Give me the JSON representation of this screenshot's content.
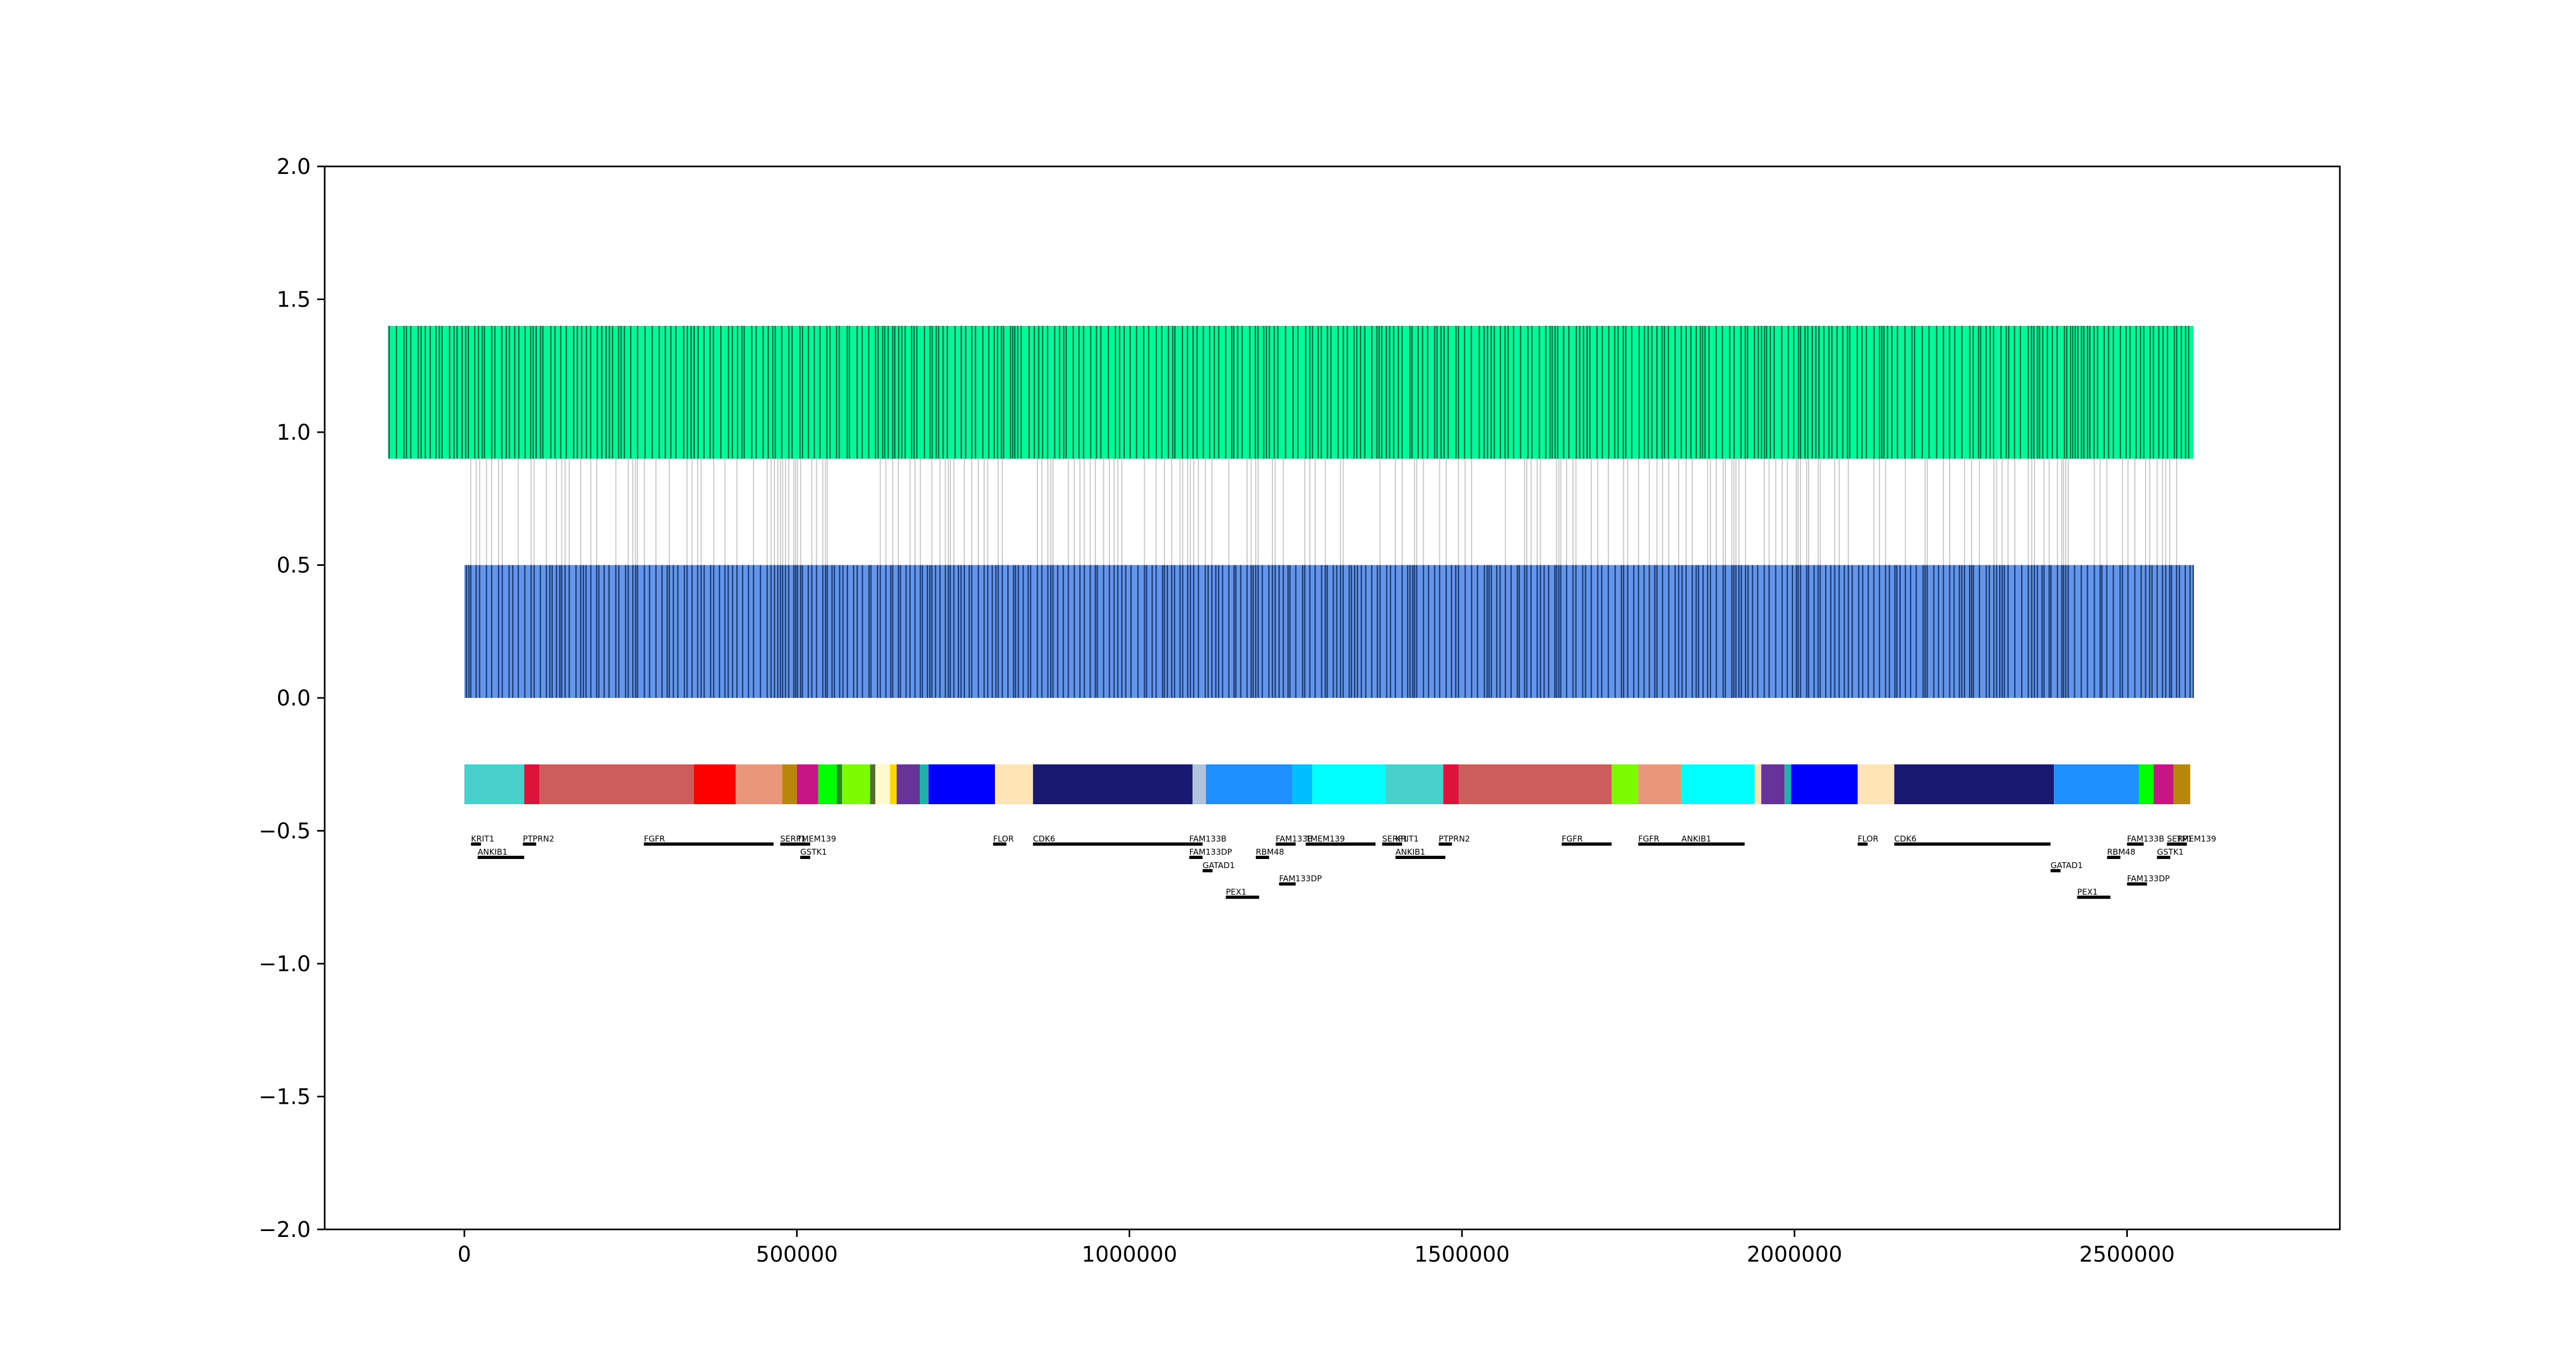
{
  "chart_data": {
    "type": "genome-track",
    "title": "",
    "xlabel": "",
    "ylabel": "",
    "xlim": [
      -210000,
      2820000
    ],
    "ylim": [
      -2.0,
      2.0
    ],
    "grid": false,
    "legend": "none",
    "x_ticks": [
      {
        "value": 0,
        "label": "0"
      },
      {
        "value": 500000,
        "label": "500000"
      },
      {
        "value": 1000000,
        "label": "1000000"
      },
      {
        "value": 1500000,
        "label": "1500000"
      },
      {
        "value": 2000000,
        "label": "2000000"
      },
      {
        "value": 2500000,
        "label": "2500000"
      }
    ],
    "y_ticks": [
      {
        "value": 2.0,
        "label": "2.0"
      },
      {
        "value": 1.5,
        "label": "1.5"
      },
      {
        "value": 1.0,
        "label": "1.0"
      },
      {
        "value": 0.5,
        "label": "0.5"
      },
      {
        "value": 0.0,
        "label": "0.0"
      },
      {
        "value": -0.5,
        "label": "−0.5"
      },
      {
        "value": -1.0,
        "label": "−1.0"
      },
      {
        "value": -1.5,
        "label": "−1.5"
      },
      {
        "value": -2.0,
        "label": "−2.0"
      }
    ],
    "tracks": {
      "query": {
        "x_range": [
          -115000,
          2600000
        ],
        "y_range": [
          0.9,
          1.4
        ],
        "color": "#00FA9A",
        "line_color": "#0b4d32"
      },
      "reference": {
        "x_range": [
          0,
          2600000
        ],
        "y_range": [
          0.0,
          0.5
        ],
        "color": "#6495ED",
        "line_color": "#0f2a55"
      },
      "connection_color": "#bbbbbb",
      "segments_y_range": [
        -0.4,
        -0.25
      ]
    },
    "segments": [
      {
        "start": 0,
        "end": 90000,
        "color": "#48D1CC"
      },
      {
        "start": 90000,
        "end": 113000,
        "color": "#DC143C"
      },
      {
        "start": 113000,
        "end": 345000,
        "color": "#CD5C5C"
      },
      {
        "start": 345000,
        "end": 408000,
        "color": "#FF0000"
      },
      {
        "start": 408000,
        "end": 478000,
        "color": "#E9967A"
      },
      {
        "start": 478000,
        "end": 500000,
        "color": "#B8860B"
      },
      {
        "start": 500000,
        "end": 532000,
        "color": "#C71585"
      },
      {
        "start": 532000,
        "end": 560000,
        "color": "#00FF00"
      },
      {
        "start": 560000,
        "end": 568000,
        "color": "#228B22"
      },
      {
        "start": 568000,
        "end": 610000,
        "color": "#7CFC00"
      },
      {
        "start": 610000,
        "end": 618000,
        "color": "#556B2F"
      },
      {
        "start": 618000,
        "end": 640000,
        "color": "#FFFACD"
      },
      {
        "start": 640000,
        "end": 650000,
        "color": "#FFD700"
      },
      {
        "start": 650000,
        "end": 685000,
        "color": "#663399"
      },
      {
        "start": 685000,
        "end": 698000,
        "color": "#20B2AA"
      },
      {
        "start": 698000,
        "end": 798000,
        "color": "#0000FF"
      },
      {
        "start": 798000,
        "end": 855000,
        "color": "#FFE4B5"
      },
      {
        "start": 855000,
        "end": 1095000,
        "color": "#191970"
      },
      {
        "start": 1095000,
        "end": 1115000,
        "color": "#B0C4DE"
      },
      {
        "start": 1115000,
        "end": 1245000,
        "color": "#1E90FF"
      },
      {
        "start": 1245000,
        "end": 1275000,
        "color": "#00BFFF"
      },
      {
        "start": 1275000,
        "end": 1385000,
        "color": "#00FFFF"
      },
      {
        "start": 1385000,
        "end": 1472000,
        "color": "#48D1CC"
      },
      {
        "start": 1472000,
        "end": 1495000,
        "color": "#DC143C"
      },
      {
        "start": 1495000,
        "end": 1725000,
        "color": "#CD5C5C"
      },
      {
        "start": 1725000,
        "end": 1765000,
        "color": "#7CFC00"
      },
      {
        "start": 1765000,
        "end": 1830000,
        "color": "#E9967A"
      },
      {
        "start": 1830000,
        "end": 1940000,
        "color": "#00FFFF"
      },
      {
        "start": 1940000,
        "end": 1950000,
        "color": "#FFE4B5"
      },
      {
        "start": 1950000,
        "end": 1985000,
        "color": "#663399"
      },
      {
        "start": 1985000,
        "end": 1995000,
        "color": "#20B2AA"
      },
      {
        "start": 1995000,
        "end": 2095000,
        "color": "#0000FF"
      },
      {
        "start": 2095000,
        "end": 2150000,
        "color": "#FFE4B5"
      },
      {
        "start": 2150000,
        "end": 2390000,
        "color": "#191970"
      },
      {
        "start": 2390000,
        "end": 2518000,
        "color": "#1E90FF"
      },
      {
        "start": 2518000,
        "end": 2540000,
        "color": "#00FF00"
      },
      {
        "start": 2540000,
        "end": 2570000,
        "color": "#C71585"
      },
      {
        "start": 2570000,
        "end": 2595000,
        "color": "#B8860B"
      }
    ],
    "genes": [
      {
        "name": "KRIT1",
        "start": 10000,
        "end": 25000,
        "y": -0.55
      },
      {
        "name": "PTPRN2",
        "start": 88000,
        "end": 108000,
        "y": -0.55
      },
      {
        "name": "FGFR",
        "start": 270000,
        "end": 465000,
        "y": -0.55
      },
      {
        "name": "SERP1",
        "start": 475000,
        "end": 500000,
        "y": -0.55
      },
      {
        "name": "TMEM139",
        "start": 500000,
        "end": 520000,
        "y": -0.55
      },
      {
        "name": "ANKIB1",
        "start": 20000,
        "end": 90000,
        "y": -0.6
      },
      {
        "name": "GSTK1",
        "start": 505000,
        "end": 520000,
        "y": -0.6
      },
      {
        "name": "FLOR",
        "start": 795000,
        "end": 815000,
        "y": -0.55
      },
      {
        "name": "CDK6",
        "start": 855000,
        "end": 1090000,
        "y": -0.55
      },
      {
        "name": "FAM133B",
        "start": 1090000,
        "end": 1110000,
        "y": -0.55
      },
      {
        "name": "FAM133DP",
        "start": 1090000,
        "end": 1110000,
        "y": -0.6
      },
      {
        "name": "GATAD1",
        "start": 1110000,
        "end": 1125000,
        "y": -0.65
      },
      {
        "name": "PEX1",
        "start": 1145000,
        "end": 1195000,
        "y": -0.75
      },
      {
        "name": "RBM48",
        "start": 1190000,
        "end": 1210000,
        "y": -0.6
      },
      {
        "name": "FAM133DP",
        "start": 1225000,
        "end": 1250000,
        "y": -0.7
      },
      {
        "name": "FAM133B",
        "start": 1220000,
        "end": 1250000,
        "y": -0.55
      },
      {
        "name": "TMEM139",
        "start": 1265000,
        "end": 1370000,
        "y": -0.55
      },
      {
        "name": "SERP1",
        "start": 1380000,
        "end": 1400000,
        "y": -0.55
      },
      {
        "name": "KRIT1",
        "start": 1400000,
        "end": 1410000,
        "y": -0.55
      },
      {
        "name": "ANKIB1",
        "start": 1400000,
        "end": 1475000,
        "y": -0.6
      },
      {
        "name": "PTPRN2",
        "start": 1465000,
        "end": 1485000,
        "y": -0.55
      },
      {
        "name": "FGFR",
        "start": 1650000,
        "end": 1725000,
        "y": -0.55
      },
      {
        "name": "FGFR",
        "start": 1765000,
        "end": 1830000,
        "y": -0.55
      },
      {
        "name": "ANKIB1",
        "start": 1830000,
        "end": 1925000,
        "y": -0.55
      },
      {
        "name": "FLOR",
        "start": 2095000,
        "end": 2110000,
        "y": -0.55
      },
      {
        "name": "CDK6",
        "start": 2150000,
        "end": 2385000,
        "y": -0.55
      },
      {
        "name": "GATAD1",
        "start": 2385000,
        "end": 2400000,
        "y": -0.65
      },
      {
        "name": "PEX1",
        "start": 2425000,
        "end": 2475000,
        "y": -0.75
      },
      {
        "name": "RBM48",
        "start": 2470000,
        "end": 2490000,
        "y": -0.6
      },
      {
        "name": "FAM133B",
        "start": 2500000,
        "end": 2525000,
        "y": -0.55
      },
      {
        "name": "FAM133DP",
        "start": 2500000,
        "end": 2530000,
        "y": -0.7
      },
      {
        "name": "GSTK1",
        "start": 2545000,
        "end": 2565000,
        "y": -0.6
      },
      {
        "name": "SERP1",
        "start": 2560000,
        "end": 2580000,
        "y": -0.55
      },
      {
        "name": "TMEM139",
        "start": 2575000,
        "end": 2590000,
        "y": -0.55
      }
    ]
  }
}
